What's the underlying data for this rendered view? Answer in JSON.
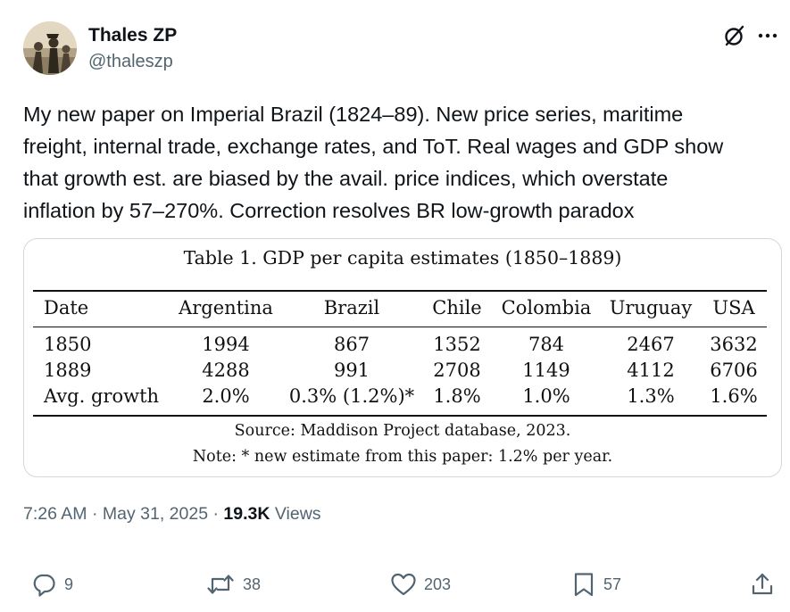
{
  "author": {
    "name": "Thales ZP",
    "handle": "@thaleszp"
  },
  "tweet": {
    "text_lines": [
      "My new paper on Imperial Brazil (1824–89). New price series, maritime",
      "freight, internal trade, exchange rates, and ToT. Real wages and GDP show",
      "that growth est. are biased by the avail. price indices, which overstate",
      "inflation by 57–270%. Correction resolves BR low-growth paradox"
    ]
  },
  "media_table": {
    "caption": "Table 1. GDP per capita estimates (1850–1889)",
    "headers": [
      "Date",
      "Argentina",
      "Brazil",
      "Chile",
      "Colombia",
      "Uruguay",
      "USA"
    ],
    "rows": [
      [
        "1850",
        "1994",
        "867",
        "1352",
        "784",
        "2467",
        "3632"
      ],
      [
        "1889",
        "4288",
        "991",
        "2708",
        "1149",
        "4112",
        "6706"
      ],
      [
        "Avg. growth",
        "2.0%",
        "0.3% (1.2%)*",
        "1.8%",
        "1.0%",
        "1.3%",
        "1.6%"
      ]
    ],
    "source": "Source: Maddison Project database, 2023.",
    "note": "Note: * new estimate from this paper: 1.2% per year."
  },
  "meta": {
    "time": "7:26 AM",
    "separator": "·",
    "date": "May 31, 2025",
    "views_count": "19.3K",
    "views_label": "Views"
  },
  "actions": {
    "replies": "9",
    "reposts": "38",
    "likes": "203",
    "bookmarks": "57"
  },
  "colors": {
    "text": "#0f1419",
    "secondary": "#536471",
    "border": "#cfd9de"
  }
}
